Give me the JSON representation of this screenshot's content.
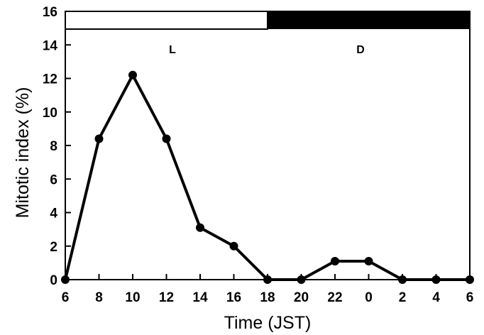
{
  "chart_data": {
    "type": "line",
    "xlabel": "Time (JST)",
    "ylabel": "Mitotic index (%)",
    "ylim": [
      0,
      16
    ],
    "yticks": [
      0,
      2,
      4,
      6,
      8,
      10,
      12,
      14,
      16
    ],
    "x_tick_labels": [
      "6",
      "8",
      "10",
      "12",
      "14",
      "16",
      "18",
      "20",
      "22",
      "0",
      "2",
      "4",
      "6"
    ],
    "series": [
      {
        "values": [
          0,
          8.4,
          12.2,
          8.4,
          3.1,
          2.0,
          0,
          0,
          1.1,
          1.1,
          0,
          0,
          0
        ]
      }
    ],
    "light_dark_bar": {
      "light_label": "L",
      "dark_label": "D",
      "light_range": [
        "6",
        "18"
      ],
      "dark_range": [
        "18",
        "6"
      ],
      "light_color": "#ffffff",
      "dark_color": "#000000"
    },
    "grid": false,
    "legend": "none",
    "line_color": "#000000",
    "marker_color": "#000000"
  }
}
